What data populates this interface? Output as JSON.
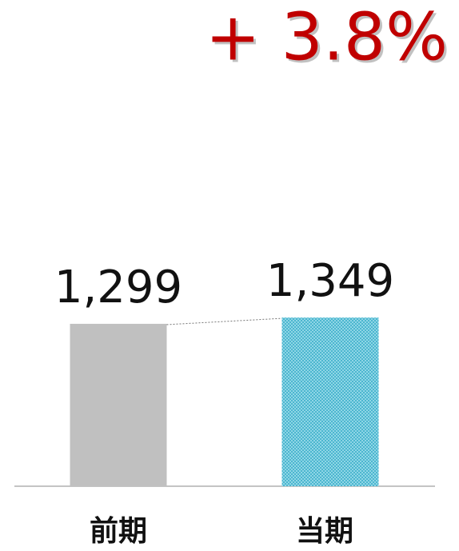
{
  "chart_data": {
    "type": "bar",
    "annotation": "+ 3.8%",
    "categories": [
      "前期",
      "当期"
    ],
    "values": [
      1299,
      1349
    ],
    "value_labels": [
      "1,299",
      "1,349"
    ],
    "colors": [
      "#c0c0c0",
      "#6cc8dc"
    ],
    "ylim": [
      0,
      3000
    ]
  }
}
